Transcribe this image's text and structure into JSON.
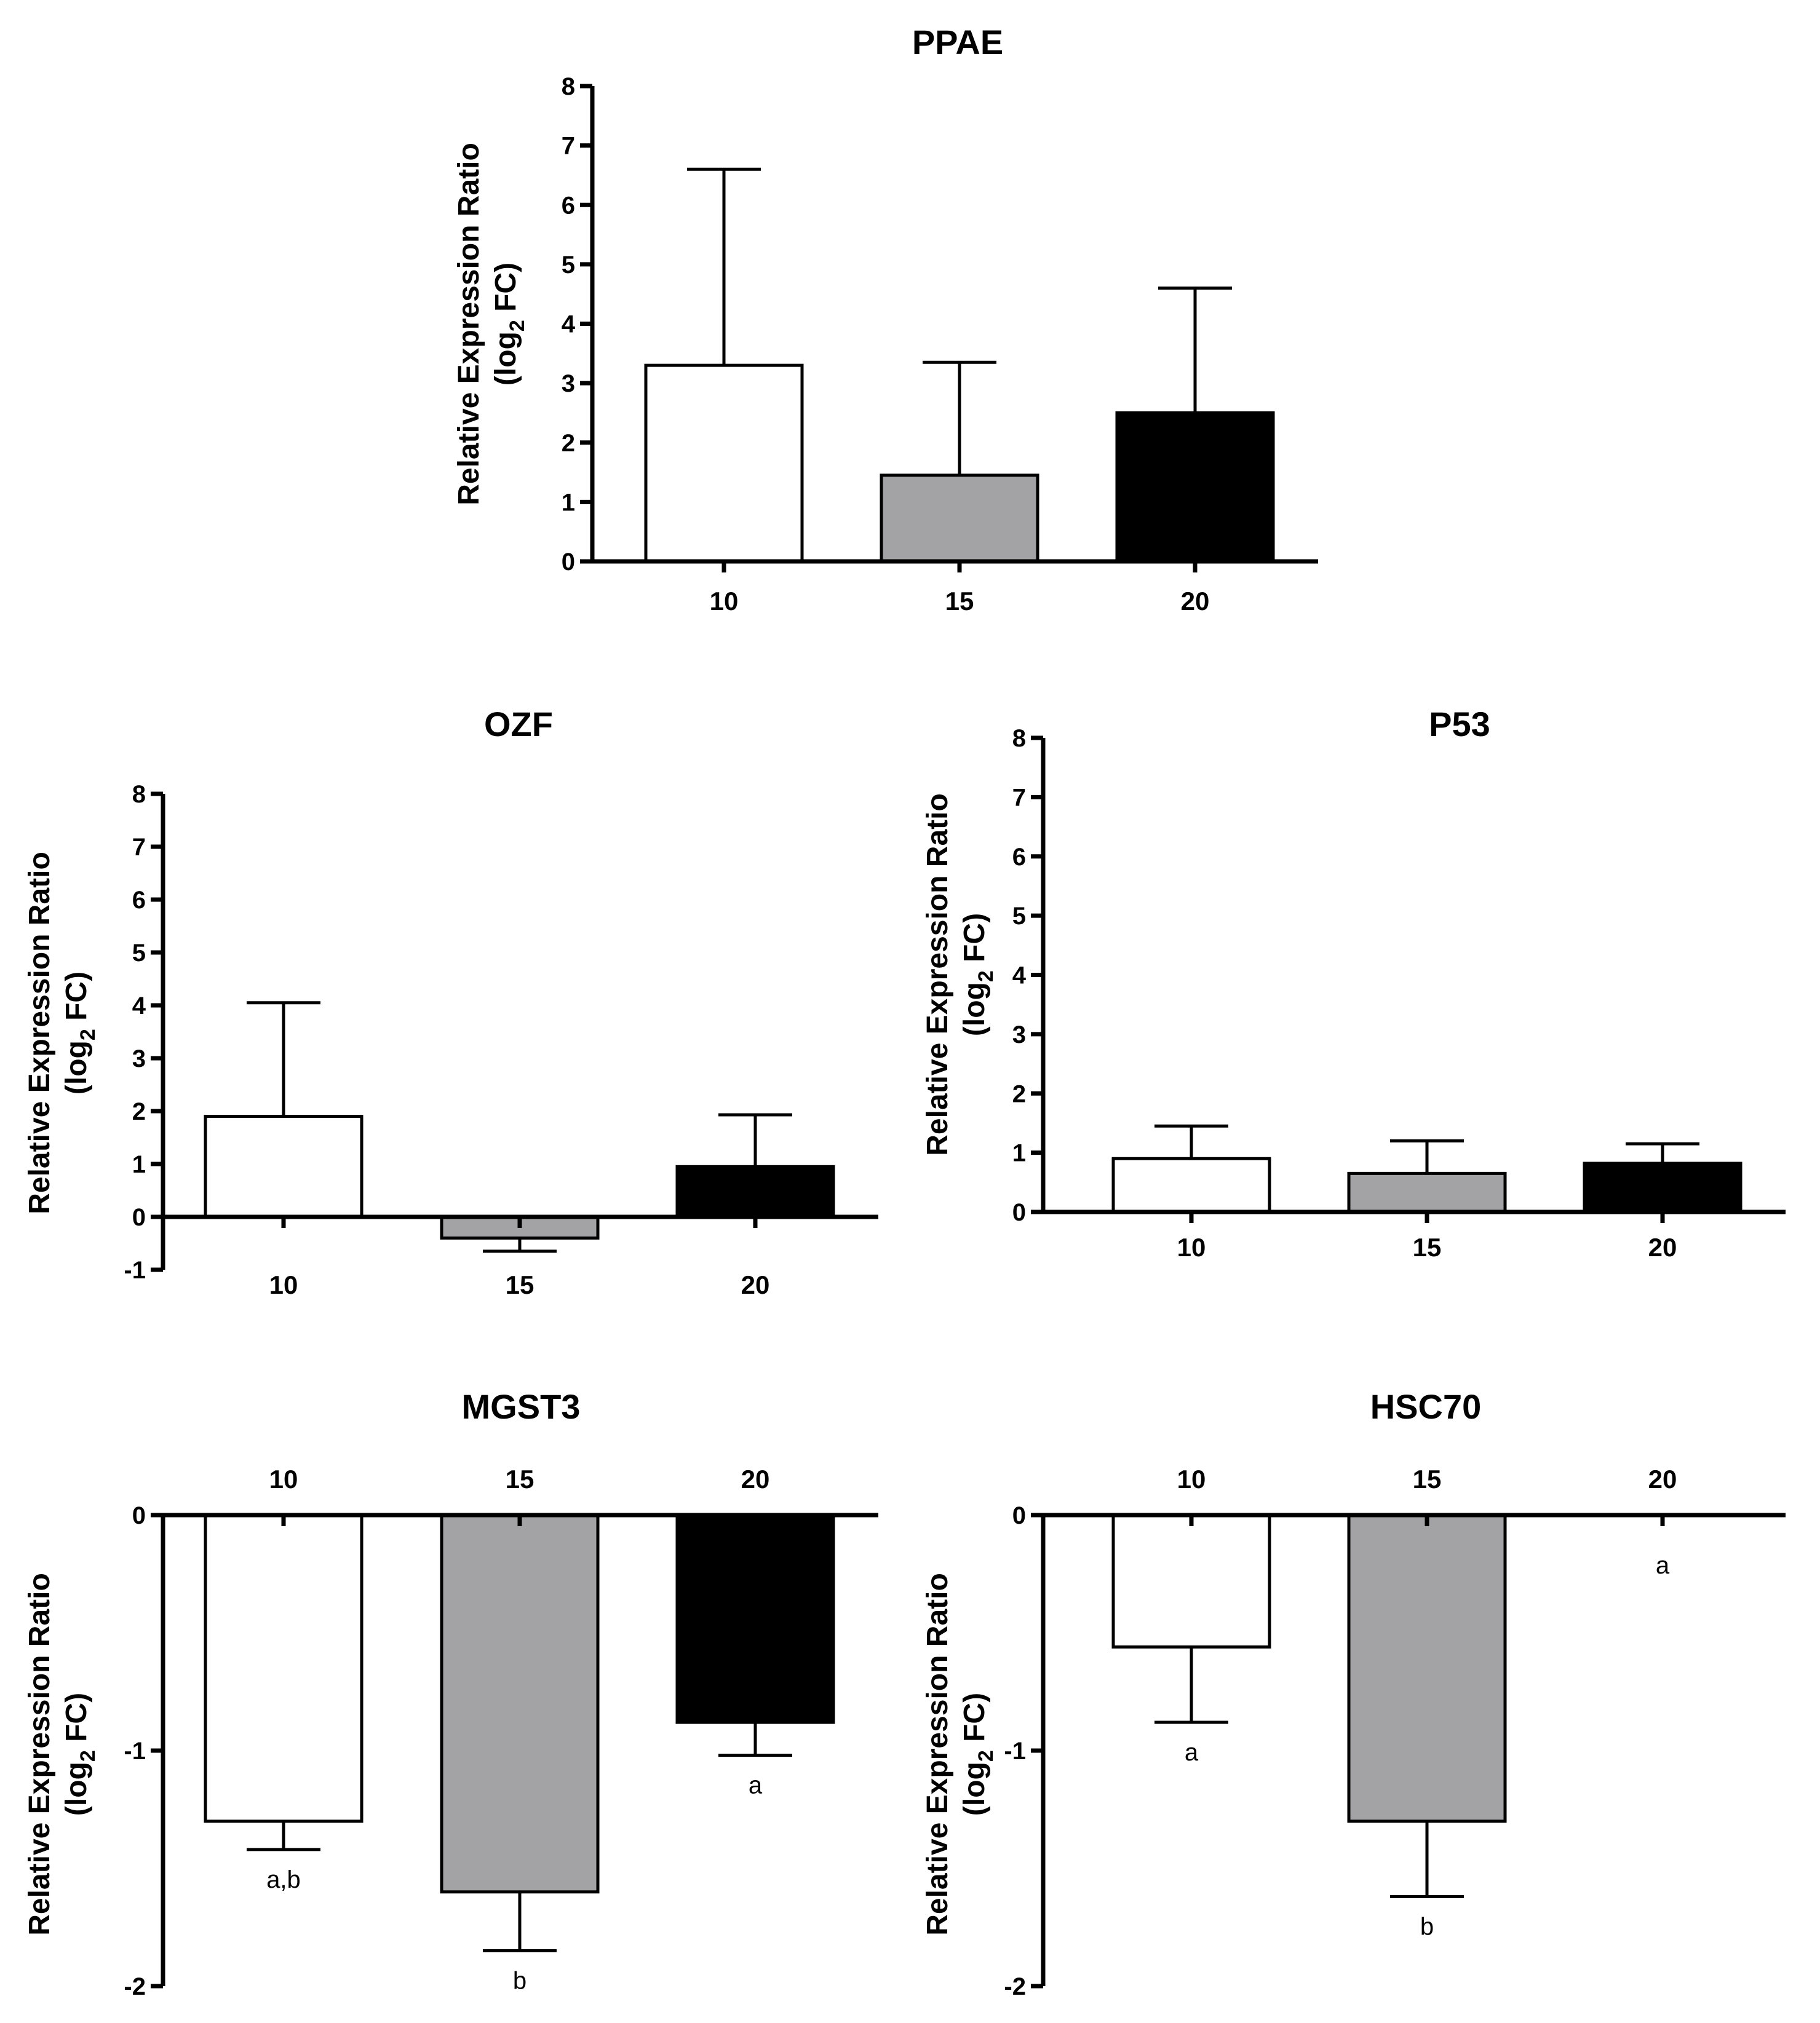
{
  "colors": {
    "c10": "#ffffff",
    "c15": "#a3a3a6",
    "c20": "#000000",
    "axis": "#000000"
  },
  "chart_data": [
    {
      "type": "bar",
      "title": "PPAE",
      "ylabel_line1": "Relative Expression Ratio",
      "ylabel_line2_prefix": "(log",
      "ylabel_sub": "2",
      "ylabel_line2_suffix": " FC)",
      "categories": [
        "10",
        "15",
        "20"
      ],
      "values": [
        3.3,
        1.45,
        2.5
      ],
      "errors": [
        3.3,
        1.9,
        2.1
      ],
      "ylim": [
        0,
        8
      ],
      "yticks": [
        "0",
        "1",
        "2",
        "3",
        "4",
        "5",
        "6",
        "7",
        "8"
      ],
      "ytick_values": [
        0,
        1,
        2,
        3,
        4,
        5,
        6,
        7,
        8
      ],
      "labels": [
        "",
        "",
        ""
      ]
    },
    {
      "type": "bar",
      "title": "OZF",
      "ylabel_line1": "Relative Expression Ratio",
      "ylabel_line2_prefix": "(log",
      "ylabel_sub": "2",
      "ylabel_line2_suffix": " FC)",
      "categories": [
        "10",
        "15",
        "20"
      ],
      "values": [
        1.9,
        -0.4,
        0.95
      ],
      "errors": [
        2.15,
        0.25,
        0.98
      ],
      "ylim": [
        -1,
        8
      ],
      "yticks": [
        "-1",
        "0",
        "1",
        "2",
        "3",
        "4",
        "5",
        "6",
        "7",
        "8"
      ],
      "ytick_values": [
        -1,
        0,
        1,
        2,
        3,
        4,
        5,
        6,
        7,
        8
      ],
      "labels": [
        "",
        "",
        ""
      ]
    },
    {
      "type": "bar",
      "title": "P53",
      "ylabel_line1": "Relative Expression Ratio",
      "ylabel_line2_prefix": "(log",
      "ylabel_sub": "2",
      "ylabel_line2_suffix": " FC)",
      "categories": [
        "10",
        "15",
        "20"
      ],
      "values": [
        0.9,
        0.65,
        0.82
      ],
      "errors": [
        0.55,
        0.55,
        0.33
      ],
      "ylim": [
        0,
        8
      ],
      "yticks": [
        "0",
        "1",
        "2",
        "3",
        "4",
        "5",
        "6",
        "7",
        "8"
      ],
      "ytick_values": [
        0,
        1,
        2,
        3,
        4,
        5,
        6,
        7,
        8
      ],
      "labels": [
        "",
        "",
        ""
      ]
    },
    {
      "type": "bar",
      "title": "MGST3",
      "ylabel_line1": "Relative Expression Ratio",
      "ylabel_line2_prefix": "(log",
      "ylabel_sub": "2",
      "ylabel_line2_suffix": " FC)",
      "categories": [
        "10",
        "15",
        "20"
      ],
      "values": [
        -1.3,
        -1.6,
        -0.88
      ],
      "errors": [
        0.12,
        0.25,
        0.14
      ],
      "ylim": [
        -2,
        0
      ],
      "yticks": [
        "-2",
        "-1",
        "0"
      ],
      "ytick_values": [
        -2,
        -1,
        0
      ],
      "labels": [
        "a,b",
        "b",
        "a"
      ]
    },
    {
      "type": "bar",
      "title": "HSC70",
      "ylabel_line1": "Relative Expression Ratio",
      "ylabel_line2_prefix": "(log",
      "ylabel_sub": "2",
      "ylabel_line2_suffix": " FC)",
      "categories": [
        "10",
        "15",
        "20"
      ],
      "values": [
        -0.56,
        -1.3,
        0
      ],
      "errors": [
        0.32,
        0.32,
        0
      ],
      "ylim": [
        -2,
        0
      ],
      "yticks": [
        "-2",
        "-1",
        "0"
      ],
      "ytick_values": [
        -2,
        -1,
        0
      ],
      "labels": [
        "a",
        "b",
        "a"
      ]
    }
  ]
}
